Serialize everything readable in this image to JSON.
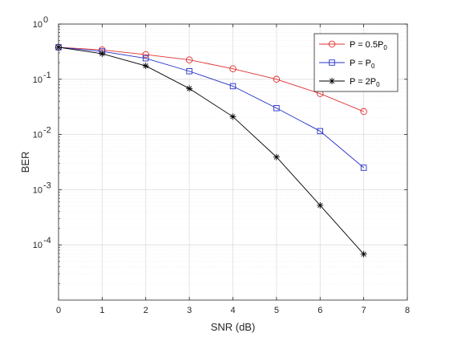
{
  "chart_data": {
    "type": "line",
    "xlabel": "SNR (dB)",
    "ylabel": "BER",
    "x_range": [
      0,
      8
    ],
    "y_range": [
      1e-05,
      1
    ],
    "y_scale": "log",
    "grid": true,
    "minor_grid": true,
    "legend_position": "top-right",
    "x_ticks": [
      "0",
      "1",
      "2",
      "3",
      "4",
      "5",
      "6",
      "7",
      "8"
    ],
    "y_ticks": [
      {
        "value": 1,
        "base": "10",
        "exp": "0"
      },
      {
        "value": 0.1,
        "base": "10",
        "exp": "-1"
      },
      {
        "value": 0.01,
        "base": "10",
        "exp": "-2"
      },
      {
        "value": 0.001,
        "base": "10",
        "exp": "-3"
      },
      {
        "value": 0.0001,
        "base": "10",
        "exp": "-4"
      }
    ],
    "series": [
      {
        "legend_main": "P = 0.5P",
        "legend_sub": "0",
        "color": "#e03030",
        "marker": "circle",
        "x": [
          0,
          1,
          2,
          3,
          4,
          5,
          6,
          7
        ],
        "y": [
          0.38,
          0.34,
          0.28,
          0.225,
          0.155,
          0.1,
          0.055,
          0.026
        ]
      },
      {
        "legend_main": "P = P",
        "legend_sub": "0",
        "color": "#2430c8",
        "marker": "square",
        "x": [
          0,
          1,
          2,
          3,
          4,
          5,
          6,
          7
        ],
        "y": [
          0.38,
          0.32,
          0.24,
          0.14,
          0.075,
          0.03,
          0.0115,
          0.0025
        ]
      },
      {
        "legend_main": "P = 2P",
        "legend_sub": "0",
        "color": "#000000",
        "marker": "star",
        "x": [
          0,
          1,
          2,
          3,
          4,
          5,
          6,
          7
        ],
        "y": [
          0.38,
          0.29,
          0.175,
          0.068,
          0.021,
          0.0039,
          0.00052,
          6.8e-05
        ]
      }
    ]
  }
}
